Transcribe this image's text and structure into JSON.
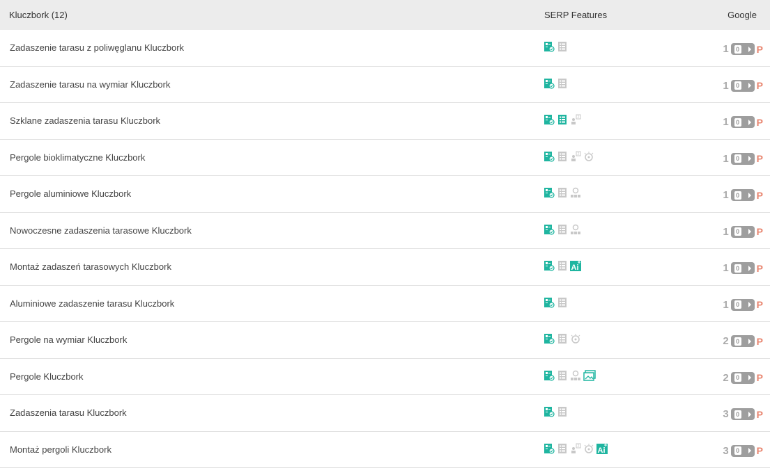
{
  "header": {
    "keyword_col": "Kluczbork (12)",
    "serp_col": "SERP Features",
    "google_col": "Google"
  },
  "colors": {
    "teal": "#1fb5a0",
    "gray_icon": "#c8c8c8",
    "pill": "#9e9e9e",
    "p": "#e8846e"
  },
  "rows": [
    {
      "keyword": "Zadaszenie tarasu z poliwęglanu Kluczbork",
      "icons": [
        "serp-teal",
        "list-gray"
      ],
      "position": "1",
      "badge": "0",
      "p": "P"
    },
    {
      "keyword": "Zadaszenie tarasu na wymiar Kluczbork",
      "icons": [
        "serp-teal",
        "list-gray"
      ],
      "position": "1",
      "badge": "0",
      "p": "P"
    },
    {
      "keyword": "Szklane zadaszenia tarasu Kluczbork",
      "icons": [
        "serp-teal",
        "list-teal",
        "people-gray"
      ],
      "position": "1",
      "badge": "0",
      "p": "P"
    },
    {
      "keyword": "Pergole bioklimatyczne Kluczbork",
      "icons": [
        "serp-teal",
        "list-gray",
        "people-gray",
        "sun-gray"
      ],
      "position": "1",
      "badge": "0",
      "p": "P"
    },
    {
      "keyword": "Pergole aluminiowe Kluczbork",
      "icons": [
        "serp-teal",
        "list-gray",
        "local-gray"
      ],
      "position": "1",
      "badge": "0",
      "p": "P"
    },
    {
      "keyword": "Nowoczesne zadaszenia tarasowe Kluczbork",
      "icons": [
        "serp-teal",
        "list-gray",
        "local-gray"
      ],
      "position": "1",
      "badge": "0",
      "p": "P"
    },
    {
      "keyword": "Montaż zadaszeń tarasowych Kluczbork",
      "icons": [
        "serp-teal",
        "list-gray",
        "ai-teal"
      ],
      "position": "1",
      "badge": "0",
      "p": "P"
    },
    {
      "keyword": "Aluminiowe zadaszenie tarasu Kluczbork",
      "icons": [
        "serp-teal",
        "list-gray"
      ],
      "position": "1",
      "badge": "0",
      "p": "P"
    },
    {
      "keyword": "Pergole na wymiar Kluczbork",
      "icons": [
        "serp-teal",
        "list-gray",
        "sun-gray"
      ],
      "position": "2",
      "badge": "0",
      "p": "P"
    },
    {
      "keyword": "Pergole Kluczbork",
      "icons": [
        "serp-teal",
        "list-gray",
        "local-gray",
        "image-teal"
      ],
      "position": "2",
      "badge": "0",
      "p": "P"
    },
    {
      "keyword": "Zadaszenia tarasu Kluczbork",
      "icons": [
        "serp-teal",
        "list-gray"
      ],
      "position": "3",
      "badge": "0",
      "p": "P"
    },
    {
      "keyword": "Montaż pergoli Kluczbork",
      "icons": [
        "serp-teal",
        "list-gray",
        "people-gray",
        "sun-gray",
        "ai-teal"
      ],
      "position": "3",
      "badge": "0",
      "p": "P"
    }
  ]
}
